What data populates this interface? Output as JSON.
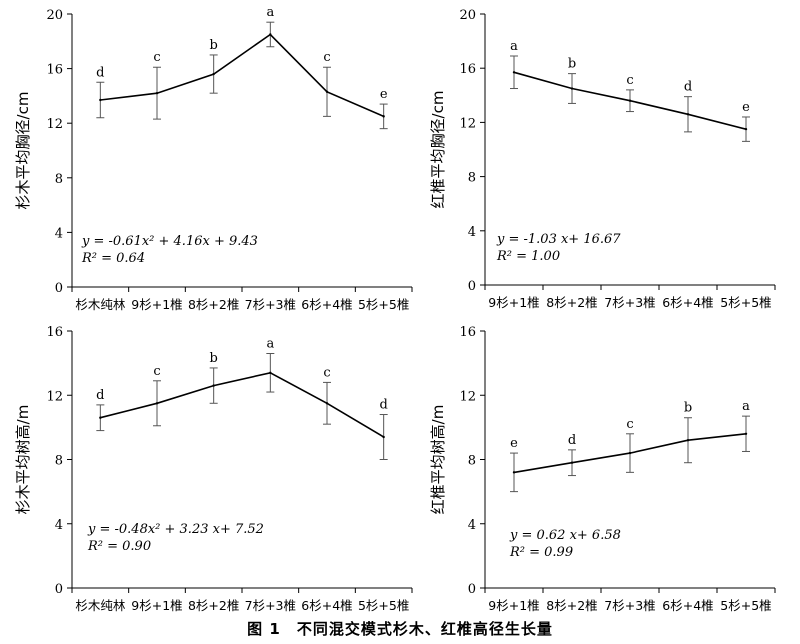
{
  "figure": {
    "caption": "图 1　不同混交模式杉木、红椎高径生长量"
  },
  "chart_data": [
    {
      "type": "line",
      "title": "",
      "ylabel": "杉木平均胸径/cm",
      "xlabel": "",
      "categories": [
        "杉木纯林",
        "9杉+1椎",
        "8杉+2椎",
        "7杉+3椎",
        "6杉+4椎",
        "5杉+5椎"
      ],
      "values": [
        13.7,
        14.2,
        15.6,
        18.5,
        14.3,
        12.5
      ],
      "error": [
        1.3,
        1.9,
        1.4,
        0.9,
        1.8,
        0.9
      ],
      "letters": [
        "d",
        "c",
        "b",
        "a",
        "c",
        "e"
      ],
      "yticks": [
        "0",
        "4",
        "8",
        "12",
        "16",
        "20"
      ],
      "ylim": [
        0,
        20
      ],
      "equation": [
        "y = -0.61x² + 4.16x + 9.43",
        "R² = 0.64"
      ],
      "grid": false
    },
    {
      "type": "line",
      "title": "",
      "ylabel": "红椎平均胸径/cm",
      "xlabel": "",
      "categories": [
        "9杉+1椎",
        "8杉+2椎",
        "7杉+3椎",
        "6杉+4椎",
        "5杉+5椎"
      ],
      "values": [
        15.7,
        14.5,
        13.6,
        12.6,
        11.5
      ],
      "error": [
        1.2,
        1.1,
        0.8,
        1.3,
        0.9
      ],
      "letters": [
        "a",
        "b",
        "c",
        "d",
        "e"
      ],
      "yticks": [
        "0",
        "4",
        "8",
        "12",
        "16",
        "20"
      ],
      "ylim": [
        0,
        20
      ],
      "equation": [
        "y = -1.03 x+ 16.67",
        "R² = 1.00"
      ],
      "grid": false
    },
    {
      "type": "line",
      "title": "",
      "ylabel": "杉木平均树高/m",
      "xlabel": "",
      "categories": [
        "杉木纯林",
        "9杉+1椎",
        "8杉+2椎",
        "7杉+3椎",
        "6杉+4椎",
        "5杉+5椎"
      ],
      "values": [
        10.6,
        11.5,
        12.6,
        13.4,
        11.5,
        9.4
      ],
      "error": [
        0.8,
        1.4,
        1.1,
        1.2,
        1.3,
        1.4
      ],
      "letters": [
        "d",
        "c",
        "b",
        "a",
        "c",
        "d"
      ],
      "yticks": [
        "0",
        "4",
        "8",
        "12",
        "16"
      ],
      "ylim": [
        0,
        16
      ],
      "equation": [
        "y = -0.48x² + 3.23 x+ 7.52",
        "R² = 0.90"
      ],
      "grid": false
    },
    {
      "type": "line",
      "title": "",
      "ylabel": "红椎平均树高/m",
      "xlabel": "",
      "categories": [
        "9杉+1椎",
        "8杉+2椎",
        "7杉+3椎",
        "6杉+4椎",
        "5杉+5椎"
      ],
      "values": [
        7.2,
        7.8,
        8.4,
        9.2,
        9.6
      ],
      "error": [
        1.2,
        0.8,
        1.2,
        1.4,
        1.1
      ],
      "letters": [
        "e",
        "d",
        "c",
        "b",
        "a"
      ],
      "yticks": [
        "0",
        "4",
        "8",
        "12",
        "16"
      ],
      "ylim": [
        0,
        16
      ],
      "equation": [
        "y = 0.62 x+ 6.58",
        "R² = 0.99"
      ],
      "grid": false
    }
  ]
}
